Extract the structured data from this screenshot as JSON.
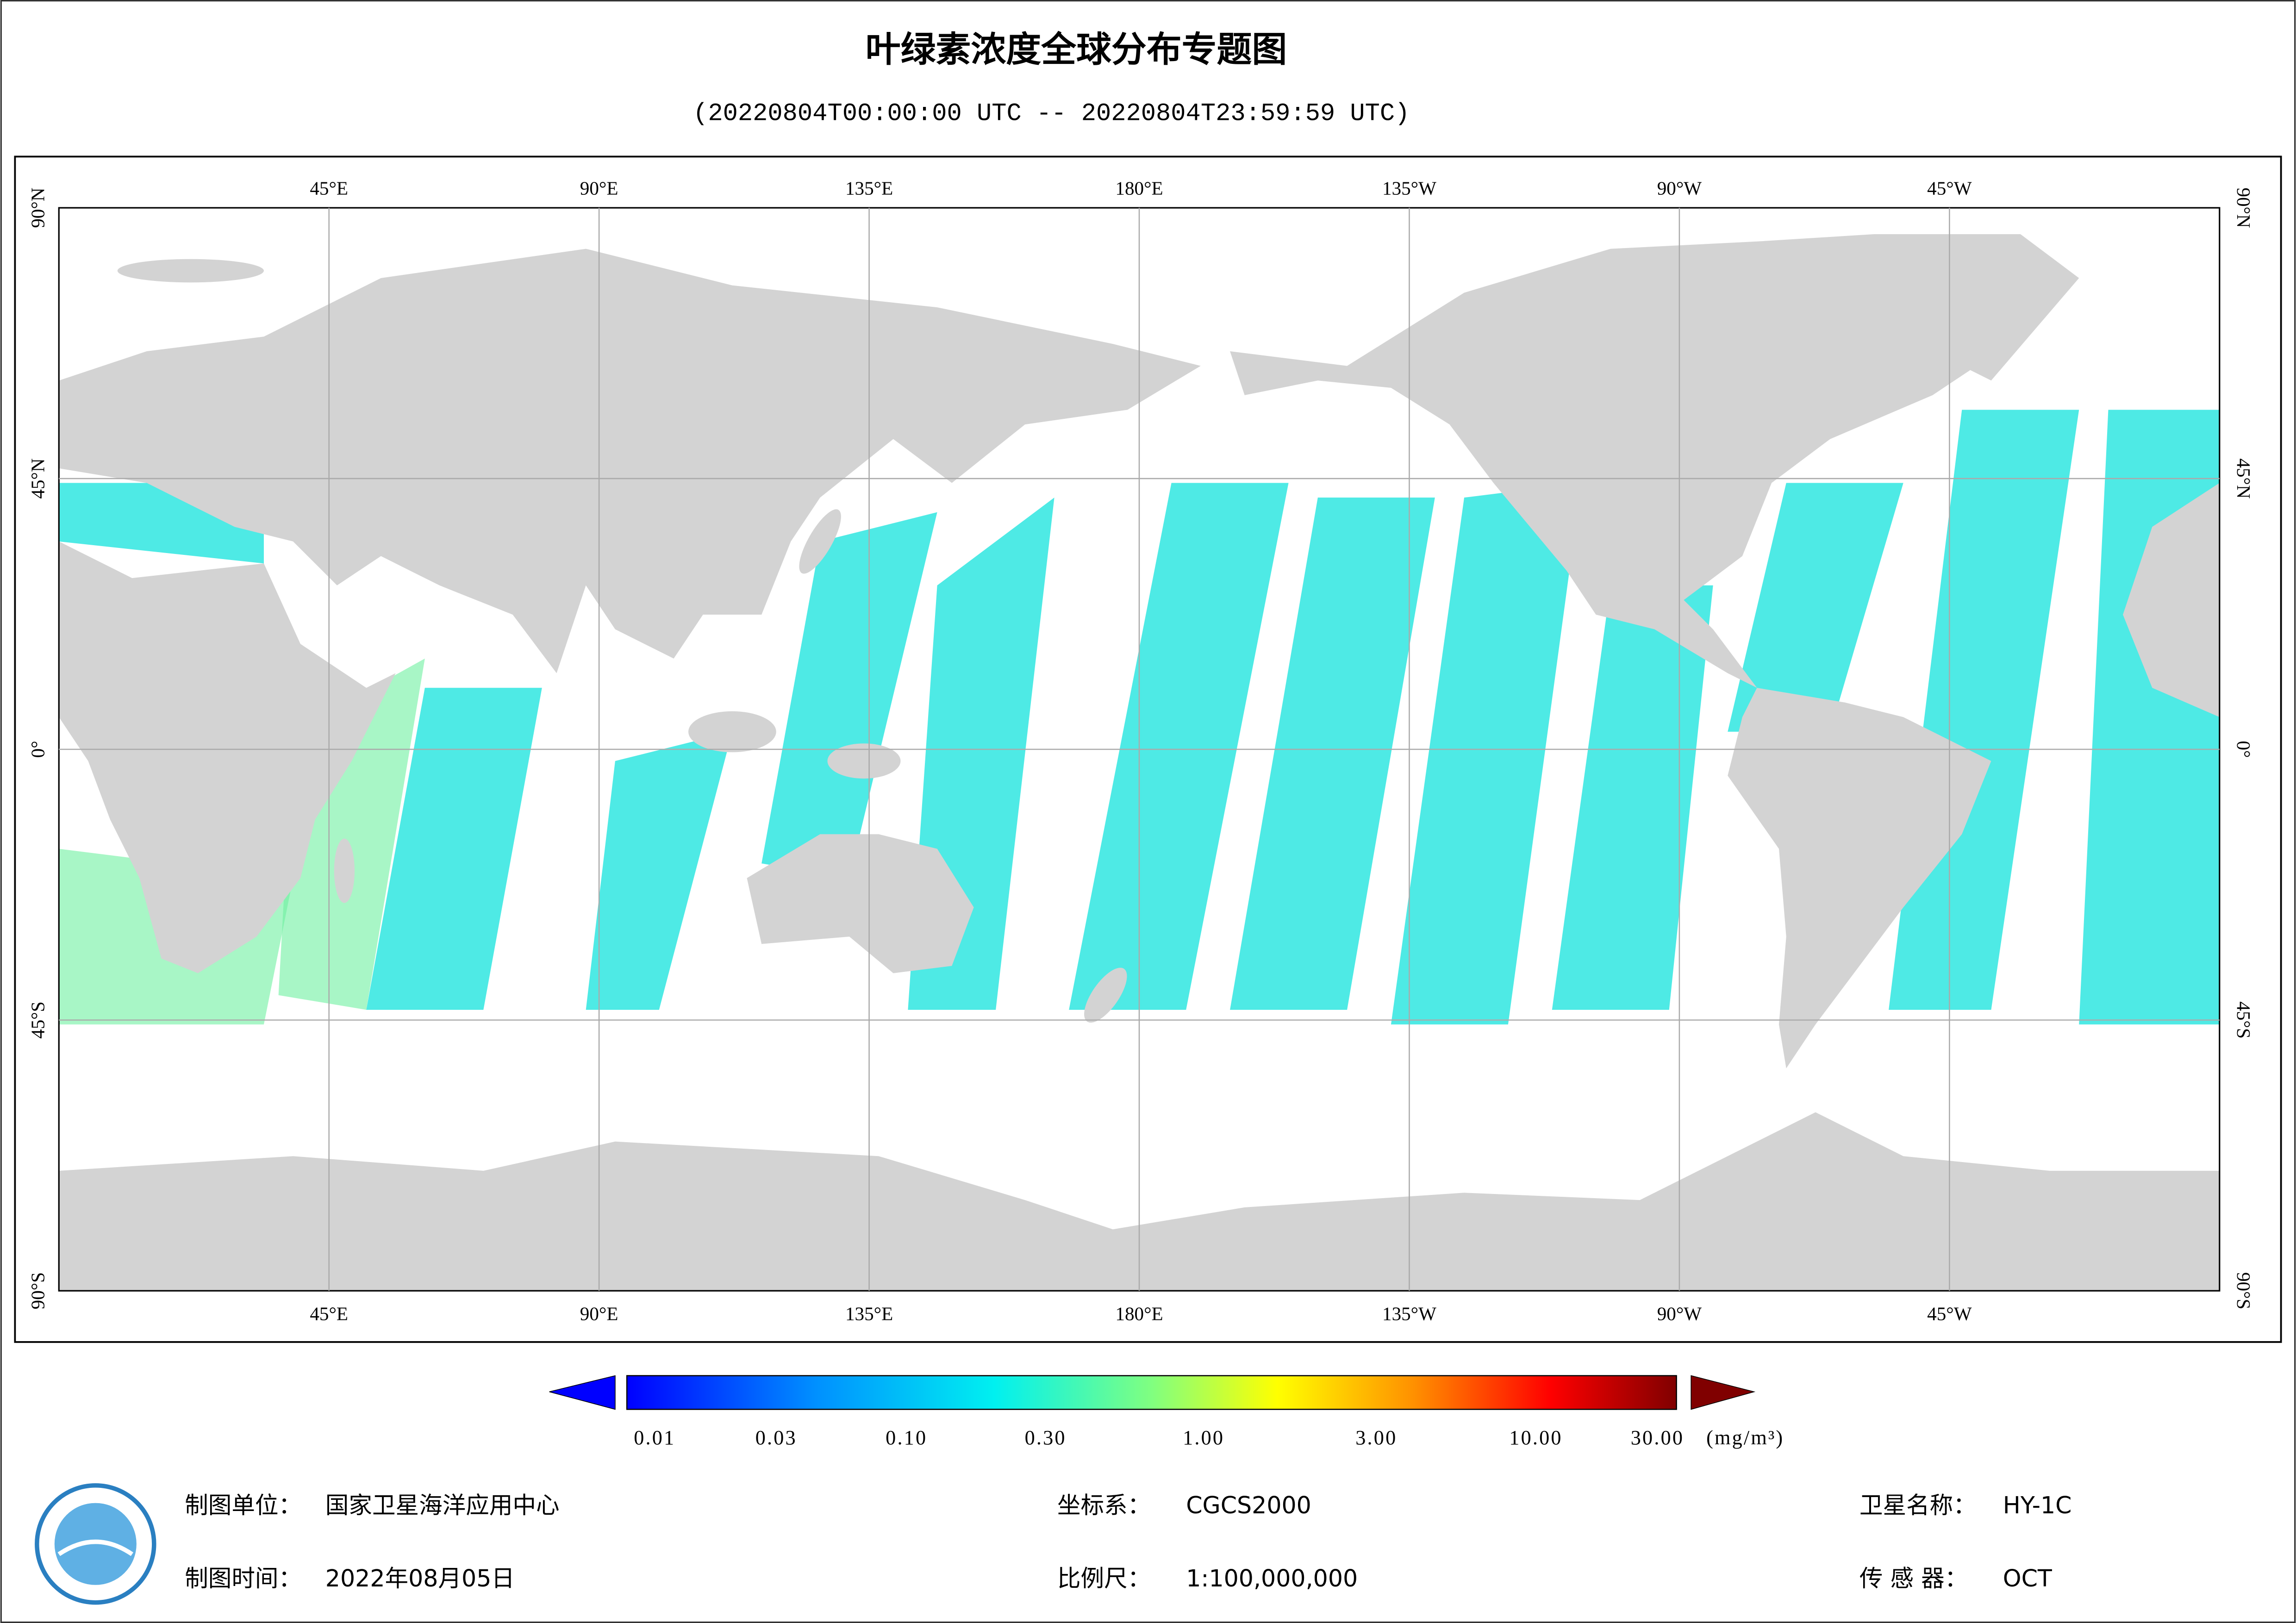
{
  "header": {
    "title": "叶绿素浓度全球分布专题图",
    "subtitle": "(20220804T00:00:00 UTC -- 20220804T23:59:59 UTC)"
  },
  "map": {
    "longitude_labels": [
      "45°E",
      "90°E",
      "135°E",
      "180°E",
      "135°W",
      "90°W",
      "45°W"
    ],
    "latitude_labels": [
      "90°N",
      "45°N",
      "0°",
      "45°S",
      "90°S"
    ]
  },
  "colorbar": {
    "ticks": [
      "0.01",
      "0.03",
      "0.10",
      "0.30",
      "1.00",
      "3.00",
      "10.00",
      "30.00"
    ],
    "unit": "(mg/m³)"
  },
  "footer": {
    "items": [
      {
        "label": "制图单位：",
        "value": "国家卫星海洋应用中心"
      },
      {
        "label": "制图时间：",
        "value": "2022年08月05日"
      },
      {
        "label": "坐标系：",
        "value": "CGCS2000"
      },
      {
        "label": "比例尺：",
        "value": "1:100,000,000"
      },
      {
        "label": "卫星名称：",
        "value": "HY-1C"
      },
      {
        "label": "传 感 器：",
        "value": "OCT"
      }
    ]
  }
}
